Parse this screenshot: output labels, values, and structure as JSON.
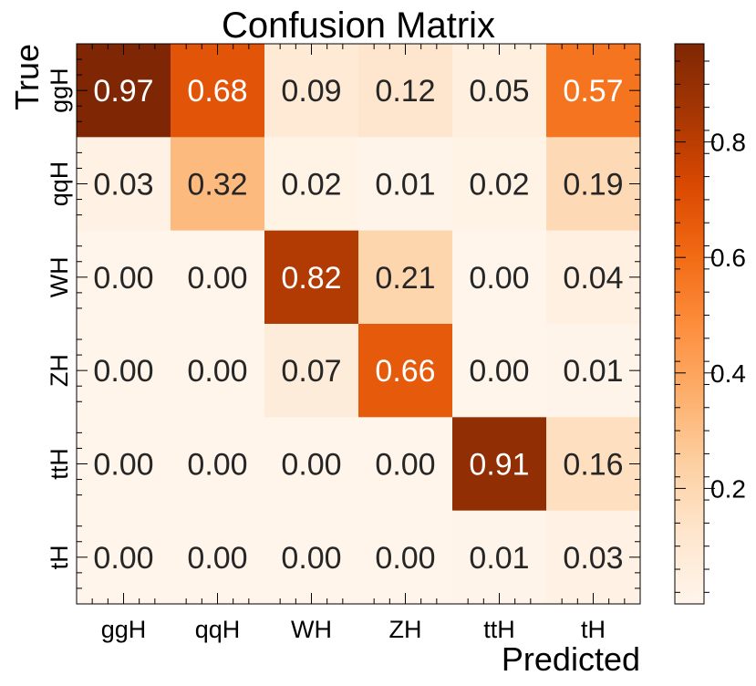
{
  "chart_data": {
    "type": "heatmap",
    "title": "Confusion Matrix",
    "xlabel": "Predicted",
    "ylabel": "True",
    "x_categories": [
      "ggH",
      "qqH",
      "WH",
      "ZH",
      "ttH",
      "tH"
    ],
    "y_categories": [
      "ggH",
      "qqH",
      "WH",
      "ZH",
      "ttH",
      "tH"
    ],
    "values": [
      [
        0.97,
        0.68,
        0.09,
        0.12,
        0.05,
        0.57
      ],
      [
        0.03,
        0.32,
        0.02,
        0.01,
        0.02,
        0.19
      ],
      [
        0.0,
        0.0,
        0.82,
        0.21,
        0.0,
        0.04
      ],
      [
        0.0,
        0.0,
        0.07,
        0.66,
        0.0,
        0.01
      ],
      [
        0.0,
        0.0,
        0.0,
        0.0,
        0.91,
        0.16
      ],
      [
        0.0,
        0.0,
        0.0,
        0.0,
        0.01,
        0.03
      ]
    ],
    "value_format": "0.00",
    "colormap": "Oranges",
    "colormap_stops": [
      "#fff5eb",
      "#fee6ce",
      "#fdd0a2",
      "#fdae6b",
      "#fd8d3c",
      "#f16913",
      "#d94801",
      "#a63603",
      "#7f2704"
    ],
    "color_range": [
      0.0,
      0.97
    ],
    "colorbar_ticks": [
      0.2,
      0.4,
      0.6,
      0.8
    ],
    "colorbar_tick_labels": [
      "0.2",
      "0.4",
      "0.6",
      "0.8"
    ],
    "grid": false,
    "legend": "colorbar-right"
  }
}
